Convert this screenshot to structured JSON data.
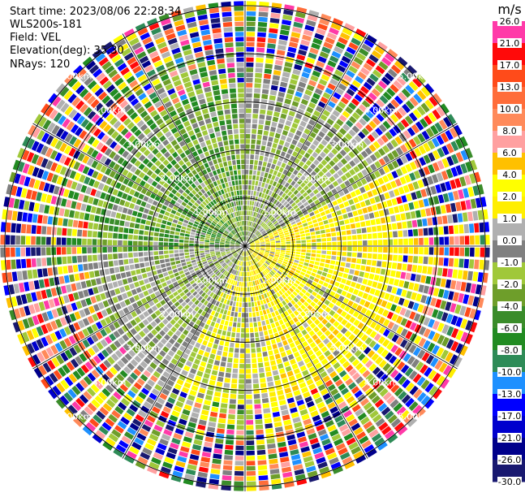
{
  "header": {
    "start_time": "Start time: 2023/08/06 22:28:34",
    "instrument": "WLS200s-181",
    "field": "Field: VEL",
    "elevation": "Elevation(deg): 35.30",
    "nrays": "NRays: 120"
  },
  "chart_data": {
    "type": "heatmap",
    "projection": "polar-ppi",
    "field": "VEL",
    "nrays": 120,
    "range_rings_km": [
      1.0,
      2.0,
      3.0,
      4.0,
      5.0
    ],
    "ring_labels": [
      "1.00km",
      "2.00km",
      "3.00km",
      "4.00km",
      "5.00km"
    ],
    "max_range_km": 5.1,
    "spokes_deg": [
      0,
      30,
      60,
      90,
      120,
      150,
      180,
      210,
      240,
      270,
      300,
      330
    ],
    "colorbar": {
      "unit": "m/s",
      "ticks": [
        "26.0",
        "21.0",
        "17.0",
        "13.0",
        "10.0",
        "8.0",
        "6.0",
        "4.0",
        "2.0",
        "1.0",
        "0.0",
        "-1.0",
        "-2.0",
        "-4.0",
        "-6.0",
        "-8.0",
        "-10.0",
        "-13.0",
        "-17.0",
        "-21.0",
        "-26.0",
        "-30.0"
      ],
      "colors": [
        "#ff3aa8",
        "#ff0a0a",
        "#ff4b1a",
        "#ff6d3a",
        "#ff8a5a",
        "#ffa0a0",
        "#ffc000",
        "#ffff00",
        "#ffee00",
        "#b0b0b0",
        "#808080",
        "#a0c83a",
        "#6e9e2a",
        "#3a8c2a",
        "#228b22",
        "#2e8b57",
        "#1e90ff",
        "#0000ff",
        "#0000cd",
        "#00008b",
        "#191970"
      ]
    },
    "sector_summary": [
      {
        "az_from": 0,
        "az_to": 60,
        "dominant": "-2.0 to -4.0"
      },
      {
        "az_from": 60,
        "az_to": 150,
        "dominant": "2.0 to 4.0"
      },
      {
        "az_from": 150,
        "az_to": 200,
        "dominant": "2.0 to 4.0"
      },
      {
        "az_from": 200,
        "az_to": 270,
        "dominant": "-1.0 to -4.0"
      },
      {
        "az_from": 270,
        "az_to": 360,
        "dominant": "-4.0 to -8.0"
      }
    ]
  }
}
